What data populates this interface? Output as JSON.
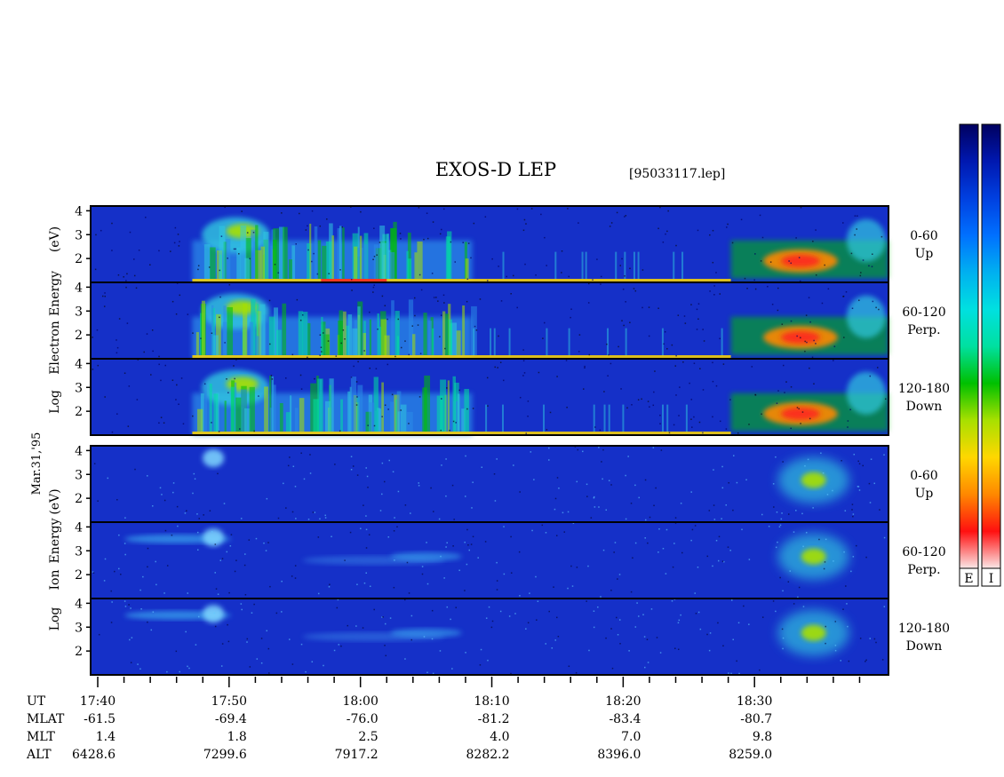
{
  "chart_data": {
    "type": "heatmap",
    "title": "EXOS-D LEP",
    "file_label": "[95033117.lep]",
    "date_label": "Mar.31,'95",
    "colorbar": {
      "labels": [
        "E",
        "I"
      ],
      "colors": [
        "#fbe6e6",
        "#ff1010",
        "#ff8800",
        "#ffd700",
        "#a8e000",
        "#00c000",
        "#00e0a0",
        "#00e0e0",
        "#00b0f0",
        "#0070ff",
        "#0040e0",
        "#0018b0",
        "#000060"
      ]
    },
    "groups": [
      {
        "name": "electron",
        "ylabel_lines": [
          "Log",
          "Electron",
          "Energy",
          "(eV)"
        ],
        "panels": [
          {
            "name": "up",
            "label_lines": [
              "0-60",
              "Up"
            ],
            "yticks": [
              "4",
              "3",
              "2"
            ],
            "ylim": [
              1,
              4.2
            ]
          },
          {
            "name": "perp",
            "label_lines": [
              "60-120",
              "Perp."
            ],
            "yticks": [
              "4",
              "3",
              "2"
            ],
            "ylim": [
              1,
              4.2
            ]
          },
          {
            "name": "down",
            "label_lines": [
              "120-180",
              "Down"
            ],
            "yticks": [
              "4",
              "3",
              "2"
            ],
            "ylim": [
              1,
              4.2
            ]
          }
        ]
      },
      {
        "name": "ion",
        "ylabel_lines": [
          "Log",
          "Ion",
          "Energy",
          "(eV)"
        ],
        "panels": [
          {
            "name": "up",
            "label_lines": [
              "0-60",
              "Up"
            ],
            "yticks": [
              "4",
              "3",
              "2"
            ],
            "ylim": [
              1,
              4.2
            ]
          },
          {
            "name": "perp",
            "label_lines": [
              "60-120",
              "Perp."
            ],
            "yticks": [
              "4",
              "3",
              "2"
            ],
            "ylim": [
              1,
              4.2
            ]
          },
          {
            "name": "down",
            "label_lines": [
              "120-180",
              "Down"
            ],
            "yticks": [
              "4",
              "3",
              "2"
            ],
            "ylim": [
              1,
              4.2
            ]
          }
        ]
      }
    ],
    "x_axis": {
      "start_minute": 1060,
      "end_minute": 1120,
      "major_tick_minutes": [
        1060,
        1070,
        1080,
        1090,
        1100,
        1110
      ],
      "minor_tick_minutes": [
        1062,
        1064,
        1066,
        1068,
        1072,
        1074,
        1076,
        1078,
        1082,
        1084,
        1086,
        1088,
        1092,
        1094,
        1096,
        1098,
        1102,
        1104,
        1106,
        1108,
        1112,
        1114,
        1116,
        1118
      ]
    },
    "ephemeris": {
      "row_labels": [
        "UT",
        "MLAT",
        "MLT",
        "ALT"
      ],
      "columns": [
        {
          "UT": "17:40",
          "MLAT": "-61.5",
          "MLT": "1.4",
          "ALT": "6428.6"
        },
        {
          "UT": "17:50",
          "MLAT": "-69.4",
          "MLT": "1.8",
          "ALT": "7299.6"
        },
        {
          "UT": "18:00",
          "MLAT": "-76.0",
          "MLT": "2.5",
          "ALT": "7917.2"
        },
        {
          "UT": "18:10",
          "MLAT": "-81.2",
          "MLT": "4.0",
          "ALT": "8282.2"
        },
        {
          "UT": "18:20",
          "MLAT": "-83.4",
          "MLT": "7.0",
          "ALT": "8396.0"
        },
        {
          "UT": "18:30",
          "MLAT": "-80.7",
          "MLT": "9.8",
          "ALT": "8259.0"
        }
      ]
    }
  }
}
